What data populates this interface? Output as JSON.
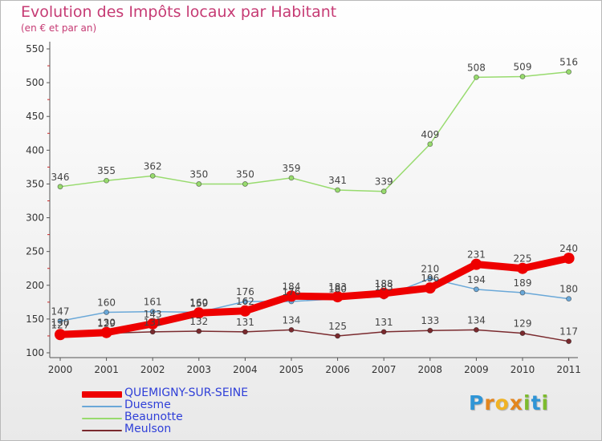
{
  "header": {
    "title": "Evolution des Impôts locaux par Habitant",
    "subtitle": "(en € et par an)"
  },
  "logo": {
    "letters": [
      "P",
      "r",
      "o",
      "x",
      "i",
      "t",
      "i"
    ],
    "colors": [
      "#2f95d6",
      "#e3851d",
      "#f0b324",
      "#e3851d",
      "#7dbb2e",
      "#2f95d6",
      "#7dbb2e"
    ]
  },
  "chart_data": {
    "type": "line",
    "title": "Evolution des Impôts locaux par Habitant",
    "subtitle": "(en € et par an)",
    "xlabel": "",
    "ylabel": "",
    "ylim": [
      100,
      550
    ],
    "yticks": [
      100,
      150,
      200,
      250,
      300,
      350,
      400,
      450,
      500,
      550
    ],
    "categories": [
      "2000",
      "2001",
      "2002",
      "2003",
      "2004",
      "2005",
      "2006",
      "2007",
      "2008",
      "2009",
      "2010",
      "2011"
    ],
    "grid": false,
    "legend_position": "bottom-left",
    "series": [
      {
        "name": "QUEMIGNY-SUR-SEINE",
        "color": "#ee0000",
        "emphasis": true,
        "values": [
          127,
          130,
          143,
          159,
          162,
          184,
          183,
          188,
          196,
          231,
          225,
          240
        ],
        "labels": [
          "127",
          "130",
          "143",
          "159",
          "162",
          "184",
          "183",
          "188",
          "196",
          "231",
          "225",
          "240"
        ]
      },
      {
        "name": "Duesme",
        "color": "#6aa8d8",
        "values": [
          147,
          160,
          161,
          160,
          176,
          176,
          180,
          183,
          210,
          194,
          189,
          180
        ],
        "labels": [
          "147",
          "160",
          "161",
          "160",
          "176",
          "176",
          "180",
          "183",
          "210",
          "194",
          "189",
          "180"
        ]
      },
      {
        "name": "Beaunotte",
        "color": "#98db6e",
        "values": [
          346,
          355,
          362,
          350,
          350,
          359,
          341,
          339,
          409,
          508,
          509,
          516
        ],
        "labels": [
          "346",
          "355",
          "362",
          "350",
          "350",
          "359",
          "341",
          "339",
          "409",
          "508",
          "509",
          "516"
        ]
      },
      {
        "name": "Meulson",
        "color": "#7a2a2e",
        "values": [
          130,
          129,
          131,
          132,
          131,
          134,
          125,
          131,
          133,
          134,
          129,
          117
        ],
        "labels": [
          "130",
          "129",
          "131",
          "132",
          "131",
          "134",
          "125",
          "131",
          "133",
          "134",
          "129",
          "117"
        ]
      }
    ]
  }
}
